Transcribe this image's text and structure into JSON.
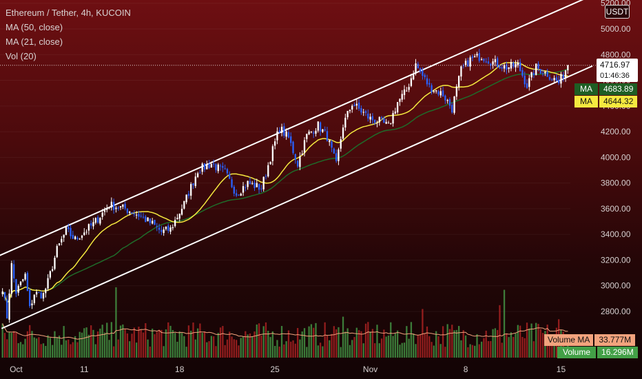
{
  "header": {
    "title": "Ethereum / Tether, 4h, KUCOIN",
    "indicators": [
      "MA (50, close)",
      "MA (21, close)",
      "Vol (20)"
    ]
  },
  "currency_button": "USDT",
  "price_badge": {
    "price": "4716.97",
    "countdown": "01:46:36"
  },
  "ma_badges": [
    {
      "label": "MA",
      "value": "4683.89",
      "color": "#2e7d32"
    },
    {
      "label": "MA",
      "value": "4644.32",
      "color": "#f0e040"
    }
  ],
  "volume_badges": [
    {
      "label": "Volume MA",
      "value": "33.777M",
      "color": "#f2a37d"
    },
    {
      "label": "Volume",
      "value": "16.296M",
      "color": "#43a047"
    }
  ],
  "colors": {
    "up": "#ffffff",
    "down": "#2962ff",
    "ma21": "#f5e93f",
    "ma50": "#1f6b2a",
    "vol_up": "#4caf50",
    "vol_down": "#c62828",
    "vol_ma": "#f2a37d",
    "channel": "#ffffff"
  },
  "chart_data": {
    "type": "candlestick",
    "title": "Ethereum / Tether, 4h, KUCOIN",
    "ylim": [
      2650,
      5200
    ],
    "yticks": [
      2800,
      3000,
      3200,
      3400,
      3600,
      3800,
      4000,
      4200,
      4400,
      4600,
      4800,
      5000,
      5200
    ],
    "ytick_labels": [
      "2800.00",
      "3000.00",
      "3200.00",
      "3400.00",
      "3600.00",
      "3800.00",
      "4000.00",
      "4200.00",
      "4400.00",
      "4600.00",
      "4800.00",
      "5000.00",
      "5200.00"
    ],
    "xticks": [
      {
        "label": "Oct",
        "bar": 6
      },
      {
        "label": "11",
        "bar": 36
      },
      {
        "label": "18",
        "bar": 78
      },
      {
        "label": "25",
        "bar": 120
      },
      {
        "label": "Nov",
        "bar": 162
      },
      {
        "label": "8",
        "bar": 204
      },
      {
        "label": "15",
        "bar": 246
      }
    ],
    "current_price": 4716.97,
    "bars": 250,
    "anchors": [
      [
        0,
        2990
      ],
      [
        2,
        2760
      ],
      [
        4,
        3160
      ],
      [
        6,
        2950
      ],
      [
        10,
        3080
      ],
      [
        12,
        2820
      ],
      [
        14,
        2940
      ],
      [
        18,
        2930
      ],
      [
        20,
        3030
      ],
      [
        24,
        3280
      ],
      [
        28,
        3430
      ],
      [
        32,
        3360
      ],
      [
        40,
        3480
      ],
      [
        47,
        3630
      ],
      [
        54,
        3600
      ],
      [
        60,
        3550
      ],
      [
        66,
        3480
      ],
      [
        70,
        3420
      ],
      [
        74,
        3440
      ],
      [
        80,
        3640
      ],
      [
        86,
        3900
      ],
      [
        92,
        3950
      ],
      [
        98,
        3880
      ],
      [
        103,
        3720
      ],
      [
        108,
        3800
      ],
      [
        114,
        3760
      ],
      [
        118,
        4000
      ],
      [
        122,
        4230
      ],
      [
        126,
        4150
      ],
      [
        130,
        3950
      ],
      [
        134,
        4170
      ],
      [
        139,
        4250
      ],
      [
        143,
        4160
      ],
      [
        147,
        3940
      ],
      [
        150,
        4250
      ],
      [
        154,
        4420
      ],
      [
        158,
        4360
      ],
      [
        162,
        4300
      ],
      [
        166,
        4280
      ],
      [
        170,
        4240
      ],
      [
        174,
        4430
      ],
      [
        178,
        4520
      ],
      [
        182,
        4720
      ],
      [
        188,
        4550
      ],
      [
        194,
        4490
      ],
      [
        198,
        4380
      ],
      [
        202,
        4680
      ],
      [
        206,
        4760
      ],
      [
        211,
        4790
      ],
      [
        216,
        4740
      ],
      [
        222,
        4700
      ],
      [
        227,
        4720
      ],
      [
        231,
        4560
      ],
      [
        235,
        4700
      ],
      [
        240,
        4650
      ],
      [
        245,
        4580
      ],
      [
        249,
        4717
      ]
    ],
    "ma21_label": "MA (21, close)",
    "ma21_value": 4644.32,
    "ma50_label": "MA (50, close)",
    "ma50_value": 4683.89,
    "channel": {
      "upper": [
        [
          0,
          3270
        ],
        [
          249,
          5240
        ]
      ],
      "lower": [
        [
          2,
          2710
        ],
        [
          249,
          4690
        ]
      ]
    },
    "volume": {
      "unit": "M",
      "max_scale": 70,
      "spikes": [
        [
          50,
          55
        ],
        [
          150,
          32
        ],
        [
          185,
          38
        ],
        [
          219,
          41
        ],
        [
          221,
          53
        ],
        [
          245,
          30
        ]
      ],
      "base_level": 18,
      "vol_ma_last": 33.777,
      "volume_last": 16.296
    }
  }
}
